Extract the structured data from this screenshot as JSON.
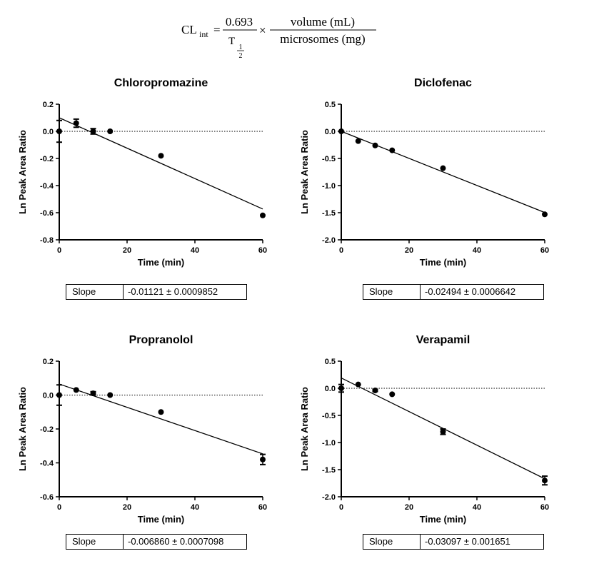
{
  "formula": {
    "lhs": "CL",
    "lhs_sub": "int",
    "eq": "=",
    "num1": "0.693",
    "den1_T": "T",
    "den1_frac_num": "1",
    "den1_frac_den": "2",
    "times": "×",
    "num2": "volume (mL)",
    "den2": "microsomes (mg)"
  },
  "common": {
    "xlabel": "Time (min)",
    "ylabel": "Ln  Peak Area Ratio",
    "slope_label": "Slope"
  },
  "chart_data": [
    {
      "type": "scatter",
      "title": "Chloropromazine",
      "xlabel": "Time (min)",
      "ylabel": "Ln  Peak Area Ratio",
      "xlim": [
        0,
        60
      ],
      "ylim": [
        -0.8,
        0.2
      ],
      "xticks": [
        0,
        20,
        40,
        60
      ],
      "yticks": [
        -0.8,
        -0.6,
        -0.4,
        -0.2,
        0.0,
        0.2
      ],
      "ytick_labels": [
        "-0.8",
        "-0.6",
        "-0.4",
        "-0.2",
        "0.0",
        "0.2"
      ],
      "x": [
        0,
        5,
        10,
        15,
        30,
        60
      ],
      "y": [
        0.0,
        0.06,
        0.0,
        0.0,
        -0.18,
        -0.62
      ],
      "err": [
        0.08,
        0.03,
        0.02,
        0,
        0,
        0
      ],
      "fit": {
        "intercept": 0.1,
        "slope": -0.01121
      },
      "slope_text": "-0.01121 ± 0.0009852"
    },
    {
      "type": "scatter",
      "title": "Diclofenac",
      "xlabel": "Time (min)",
      "ylabel": "Ln  Peak Area Ratio",
      "xlim": [
        0,
        60
      ],
      "ylim": [
        -2.0,
        0.5
      ],
      "xticks": [
        0,
        20,
        40,
        60
      ],
      "yticks": [
        -2.0,
        -1.5,
        -1.0,
        -0.5,
        0.0,
        0.5
      ],
      "ytick_labels": [
        "-2.0",
        "-1.5",
        "-1.0",
        "-0.5",
        "0.0",
        "0.5"
      ],
      "x": [
        0,
        5,
        10,
        15,
        30,
        60
      ],
      "y": [
        0.0,
        -0.18,
        -0.26,
        -0.35,
        -0.68,
        -1.53
      ],
      "err": [
        0,
        0,
        0,
        0,
        0,
        0
      ],
      "fit": {
        "intercept": 0.0,
        "slope": -0.02494
      },
      "slope_text": "-0.02494 ± 0.0006642"
    },
    {
      "type": "scatter",
      "title": "Propranolol",
      "xlabel": "Time (min)",
      "ylabel": "Ln  Peak Area Ratio",
      "xlim": [
        0,
        60
      ],
      "ylim": [
        -0.6,
        0.2
      ],
      "xticks": [
        0,
        20,
        40,
        60
      ],
      "yticks": [
        -0.6,
        -0.4,
        -0.2,
        0.0,
        0.2
      ],
      "ytick_labels": [
        "-0.6",
        "-0.4",
        "-0.2",
        "0.0",
        "0.2"
      ],
      "x": [
        0,
        5,
        10,
        15,
        30,
        60
      ],
      "y": [
        0.0,
        0.03,
        0.01,
        0.0,
        -0.1,
        -0.38
      ],
      "err": [
        0.06,
        0,
        0.01,
        0,
        0,
        0.03
      ],
      "fit": {
        "intercept": 0.065,
        "slope": -0.00686
      },
      "slope_text": "-0.006860 ± 0.0007098"
    },
    {
      "type": "scatter",
      "title": "Verapamil",
      "xlabel": "Time (min)",
      "ylabel": "Ln  Peak Area Ratio",
      "xlim": [
        0,
        60
      ],
      "ylim": [
        -2.0,
        0.5
      ],
      "xticks": [
        0,
        20,
        40,
        60
      ],
      "yticks": [
        -2.0,
        -1.5,
        -1.0,
        -0.5,
        0.0,
        0.5
      ],
      "ytick_labels": [
        "-2.0",
        "-1.5",
        "-1.0",
        "-0.5",
        "0.0",
        "0.5"
      ],
      "x": [
        0,
        5,
        10,
        15,
        30,
        60
      ],
      "y": [
        0.0,
        0.07,
        -0.04,
        -0.11,
        -0.8,
        -1.7
      ],
      "err": [
        0.07,
        0,
        0.02,
        0,
        0.05,
        0.08
      ],
      "fit": {
        "intercept": 0.19,
        "slope": -0.03097
      },
      "slope_text": "-0.03097 ± 0.001651"
    }
  ]
}
